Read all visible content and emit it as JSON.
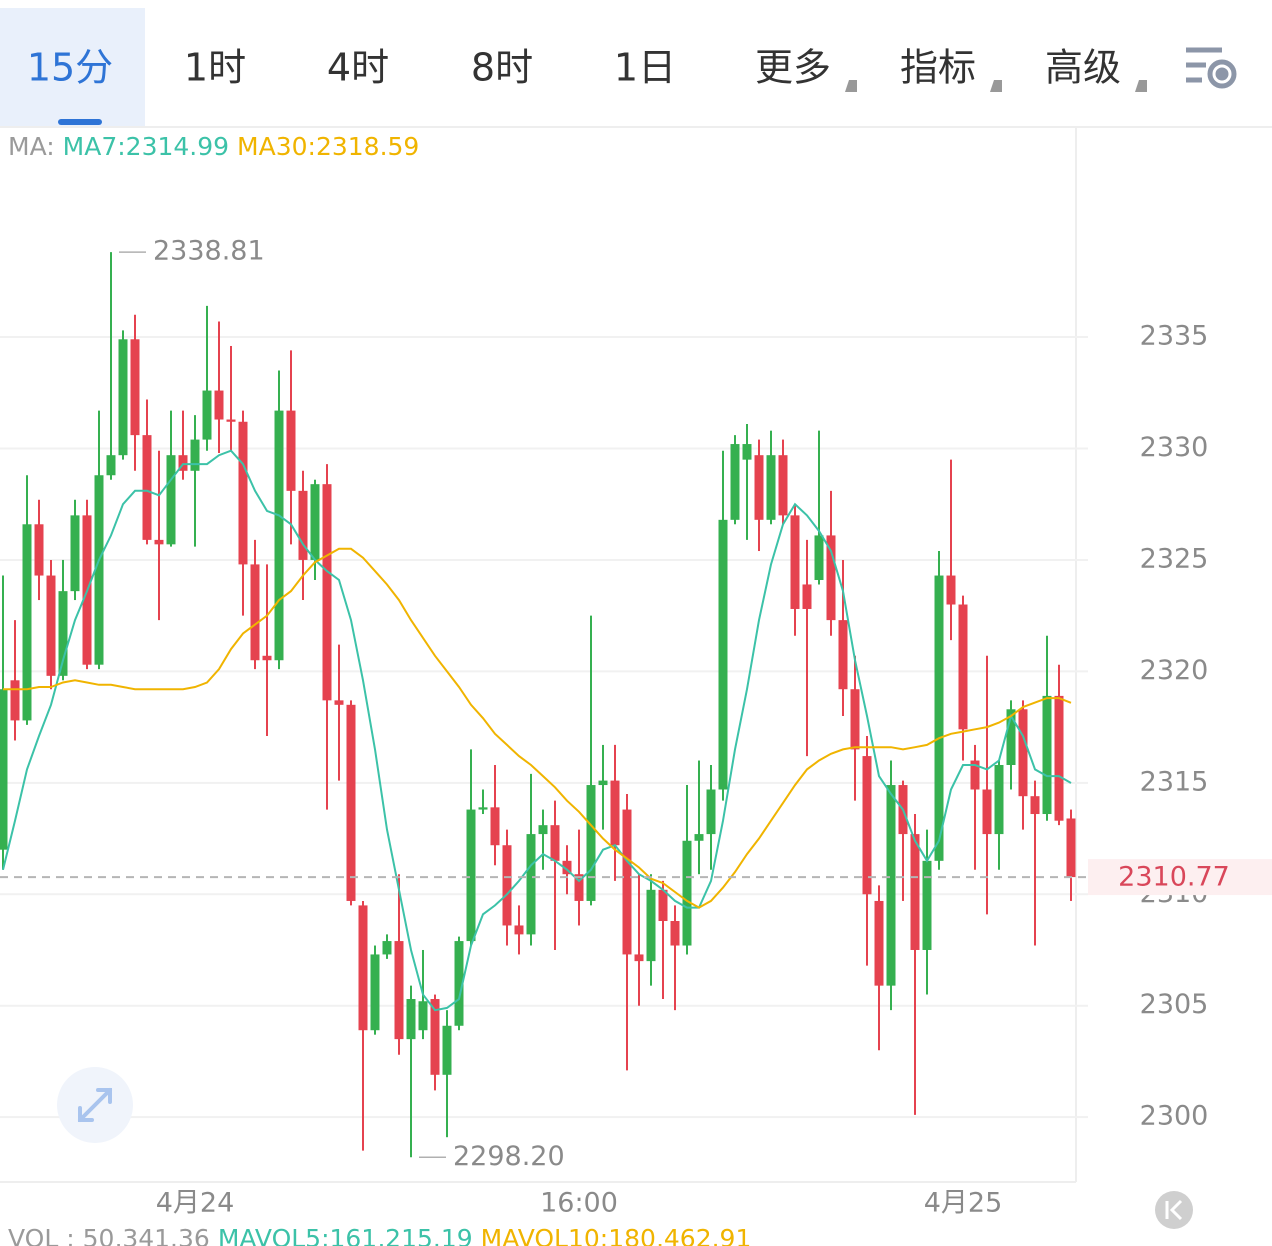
{
  "tabs": {
    "items": [
      "15分",
      "1时",
      "4时",
      "8时",
      "1日",
      "更多",
      "指标",
      "高级"
    ],
    "active": 0,
    "dropdown": [
      5,
      6,
      7
    ]
  },
  "chart_data": {
    "type": "candlestick",
    "categories": [
      null,
      null,
      null,
      null,
      null,
      null,
      null,
      null,
      null,
      null,
      null,
      null,
      null,
      null,
      null,
      null,
      "4月24",
      null,
      null,
      null,
      null,
      null,
      null,
      null,
      null,
      null,
      null,
      null,
      null,
      null,
      null,
      null,
      null,
      null,
      null,
      null,
      null,
      null,
      null,
      null,
      null,
      null,
      null,
      null,
      null,
      null,
      null,
      null,
      "16:00",
      null,
      null,
      null,
      null,
      null,
      null,
      null,
      null,
      null,
      null,
      null,
      null,
      null,
      null,
      null,
      null,
      null,
      null,
      null,
      null,
      null,
      null,
      null,
      null,
      null,
      null,
      null,
      null,
      null,
      null,
      null,
      "4月25",
      null,
      null,
      null,
      null,
      null,
      null,
      null,
      null,
      null
    ],
    "candles": {
      "open": [
        2312.0,
        2319.6,
        2317.8,
        2326.6,
        2324.3,
        2319.8,
        2323.6,
        2327.0,
        2320.3,
        2328.8,
        2329.7,
        2334.9,
        2330.6,
        2325.9,
        2325.7,
        2329.7,
        2329.0,
        2330.4,
        2332.6,
        2331.3,
        2331.2,
        2324.8,
        2320.7,
        2320.5,
        2331.7,
        2328.1,
        2325.0,
        2328.4,
        2318.7,
        2318.5,
        2309.5,
        2303.9,
        2307.3,
        2307.9,
        2303.5,
        2303.9,
        2305.3,
        2301.9,
        2304.1,
        2307.9,
        2313.8,
        2313.9,
        2312.2,
        2308.6,
        2308.2,
        2312.7,
        2313.1,
        2311.5,
        2310.9,
        2309.7,
        2314.9,
        2315.1,
        2313.8,
        2307.3,
        2307.0,
        2310.2,
        2308.8,
        2307.7,
        2312.4,
        2312.7,
        2314.7,
        2326.8,
        2329.5,
        2329.7,
        2326.8,
        2329.7,
        2327.0,
        2323.9,
        2324.1,
        2326.1,
        2322.3,
        2319.2,
        2316.2,
        2309.7,
        2305.9,
        2314.9,
        2312.7,
        2307.5,
        2311.5,
        2324.3,
        2323.0,
        2316.0,
        2314.7,
        2312.7,
        2315.8,
        2318.3,
        2314.4,
        2313.6,
        2318.9,
        2313.4
      ],
      "high": [
        2324.3,
        2322.3,
        2328.8,
        2327.7,
        2325.0,
        2325.0,
        2327.7,
        2327.7,
        2331.7,
        2338.81,
        2335.3,
        2336.0,
        2332.2,
        2329.9,
        2331.7,
        2331.7,
        2331.5,
        2336.4,
        2335.7,
        2334.6,
        2331.7,
        2325.9,
        2324.8,
        2333.5,
        2334.4,
        2329.0,
        2328.6,
        2329.3,
        2321.2,
        2318.7,
        2309.7,
        2307.7,
        2308.2,
        2310.9,
        2305.9,
        2307.5,
        2305.5,
        2304.8,
        2308.1,
        2316.5,
        2314.7,
        2315.8,
        2312.9,
        2309.5,
        2315.4,
        2313.8,
        2314.2,
        2312.2,
        2312.9,
        2322.5,
        2316.7,
        2316.7,
        2314.5,
        2310.9,
        2310.9,
        2310.6,
        2309.5,
        2314.9,
        2316.0,
        2315.8,
        2329.9,
        2330.6,
        2331.1,
        2330.4,
        2330.8,
        2330.4,
        2327.5,
        2325.9,
        2330.8,
        2328.1,
        2325.0,
        2320.7,
        2317.1,
        2310.4,
        2316.0,
        2315.1,
        2313.6,
        2312.9,
        2325.4,
        2329.5,
        2323.4,
        2316.7,
        2320.7,
        2316.0,
        2318.7,
        2318.7,
        2315.1,
        2321.6,
        2320.3,
        2313.8
      ],
      "low": [
        2311.1,
        2316.9,
        2317.6,
        2323.2,
        2319.2,
        2319.6,
        2323.2,
        2320.1,
        2320.1,
        2328.6,
        2329.5,
        2329.0,
        2325.7,
        2322.3,
        2325.6,
        2328.6,
        2325.6,
        2329.9,
        2329.8,
        2329.9,
        2322.5,
        2320.1,
        2317.1,
        2320.1,
        2325.7,
        2323.2,
        2324.1,
        2313.8,
        2315.1,
        2309.5,
        2298.5,
        2303.7,
        2307.1,
        2302.8,
        2298.2,
        2303.5,
        2301.2,
        2299.1,
        2303.9,
        2307.7,
        2313.6,
        2311.3,
        2307.7,
        2307.3,
        2307.7,
        2311.1,
        2307.5,
        2310.0,
        2308.6,
        2309.5,
        2312.9,
        2310.6,
        2302.1,
        2305.0,
        2305.9,
        2305.3,
        2304.8,
        2307.3,
        2310.9,
        2311.1,
        2314.2,
        2326.6,
        2325.9,
        2325.4,
        2326.6,
        2326.6,
        2321.6,
        2316.2,
        2323.9,
        2321.6,
        2318.0,
        2314.2,
        2306.8,
        2303.0,
        2304.8,
        2309.7,
        2300.1,
        2305.5,
        2311.1,
        2321.4,
        2316.0,
        2311.1,
        2309.1,
        2311.1,
        2314.7,
        2312.9,
        2307.7,
        2313.3,
        2313.1,
        2309.7
      ],
      "close": [
        2319.2,
        2317.8,
        2326.6,
        2324.3,
        2319.8,
        2323.6,
        2327.0,
        2320.3,
        2328.8,
        2329.7,
        2334.9,
        2330.6,
        2325.9,
        2325.7,
        2329.7,
        2329.0,
        2330.4,
        2332.6,
        2331.3,
        2331.2,
        2324.8,
        2320.5,
        2320.5,
        2331.7,
        2328.1,
        2325.0,
        2328.4,
        2318.7,
        2318.5,
        2309.7,
        2303.9,
        2307.3,
        2307.9,
        2303.5,
        2305.3,
        2305.2,
        2301.9,
        2304.1,
        2307.9,
        2313.8,
        2313.9,
        2312.2,
        2308.6,
        2308.2,
        2312.7,
        2313.1,
        2311.5,
        2310.9,
        2309.7,
        2314.9,
        2315.1,
        2312.2,
        2307.3,
        2307.0,
        2310.2,
        2308.8,
        2307.7,
        2312.4,
        2312.7,
        2314.7,
        2326.8,
        2330.2,
        2330.2,
        2326.8,
        2329.7,
        2327.0,
        2322.8,
        2322.8,
        2326.1,
        2322.3,
        2319.2,
        2316.5,
        2310.0,
        2305.9,
        2314.9,
        2312.7,
        2307.5,
        2311.5,
        2324.3,
        2323.0,
        2317.4,
        2314.7,
        2312.7,
        2315.8,
        2318.3,
        2314.4,
        2313.6,
        2318.9,
        2313.3,
        2310.77
      ]
    },
    "up_color": "#35b050",
    "down_color": "#e5424f",
    "legend_prefix": "MA:",
    "series": [
      {
        "name": "MA7:2314.99",
        "color": "#3cc2a8",
        "values": [
          2311.1,
          2313.3,
          2315.6,
          2317.1,
          2318.5,
          2320.5,
          2322.3,
          2323.6,
          2325.0,
          2326.1,
          2327.5,
          2328.1,
          2328.1,
          2327.9,
          2328.6,
          2329.3,
          2329.3,
          2329.3,
          2329.7,
          2329.9,
          2329.3,
          2328.1,
          2327.2,
          2327.0,
          2326.6,
          2325.7,
          2325.0,
          2324.5,
          2324.1,
          2322.3,
          2319.6,
          2316.5,
          2312.9,
          2310.2,
          2307.5,
          2305.5,
          2304.8,
          2304.9,
          2305.3,
          2307.7,
          2309.1,
          2309.5,
          2310.0,
          2310.6,
          2311.3,
          2311.8,
          2311.5,
          2311.1,
          2310.6,
          2311.1,
          2312.0,
          2312.2,
          2311.5,
          2310.9,
          2310.6,
          2310.2,
          2309.7,
          2309.4,
          2309.4,
          2310.6,
          2313.3,
          2316.5,
          2319.2,
          2322.3,
          2324.8,
          2326.6,
          2327.5,
          2327.0,
          2326.3,
          2325.4,
          2323.6,
          2320.5,
          2318.0,
          2315.3,
          2314.5,
          2313.8,
          2312.4,
          2311.5,
          2312.4,
          2314.7,
          2315.8,
          2315.8,
          2315.6,
          2316.0,
          2318.0,
          2317.1,
          2315.6,
          2315.3,
          2315.3,
          2314.99
        ]
      },
      {
        "name": "MA30:2318.59",
        "color": "#f0b400",
        "values": [
          2319.2,
          2319.2,
          2319.2,
          2319.3,
          2319.3,
          2319.5,
          2319.6,
          2319.5,
          2319.4,
          2319.4,
          2319.3,
          2319.2,
          2319.2,
          2319.2,
          2319.2,
          2319.2,
          2319.3,
          2319.5,
          2320.1,
          2321.0,
          2321.7,
          2322.1,
          2322.5,
          2323.2,
          2323.6,
          2324.3,
          2324.9,
          2325.2,
          2325.5,
          2325.5,
          2325.1,
          2324.5,
          2323.9,
          2323.2,
          2322.3,
          2321.5,
          2320.7,
          2320.0,
          2319.3,
          2318.5,
          2317.9,
          2317.2,
          2316.7,
          2316.2,
          2315.8,
          2315.3,
          2314.8,
          2314.2,
          2313.7,
          2313.1,
          2312.5,
          2312.0,
          2311.6,
          2311.2,
          2310.7,
          2310.5,
          2310.1,
          2309.7,
          2309.4,
          2309.7,
          2310.3,
          2311.0,
          2311.8,
          2312.5,
          2313.3,
          2314.1,
          2314.9,
          2315.6,
          2316.0,
          2316.3,
          2316.5,
          2316.6,
          2316.6,
          2316.6,
          2316.6,
          2316.5,
          2316.6,
          2316.7,
          2317.0,
          2317.2,
          2317.3,
          2317.4,
          2317.5,
          2317.7,
          2318.0,
          2318.4,
          2318.6,
          2318.8,
          2318.8,
          2318.59
        ]
      }
    ],
    "extremes": [
      2338.81,
      {
        "value": 2298.2,
        "label": "2298.20"
      }
    ],
    "last_price": 2310.77,
    "ylim": [
      2297.09,
      2344.38
    ],
    "yticks": [
      2300,
      2305,
      2310,
      2315,
      2320,
      2325,
      2330,
      2335
    ],
    "grid": true,
    "volume_legend": [
      {
        "text": "VOL : 50,341.36",
        "color": "#9a9a9a"
      },
      {
        "text": "MAVOL5:161,215.19",
        "color": "#3cc2a8"
      },
      {
        "text": "MAVOL10:180,462.91",
        "color": "#f0b400"
      }
    ]
  }
}
